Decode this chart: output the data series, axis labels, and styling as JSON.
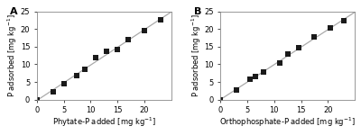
{
  "panel_A": {
    "label": "A",
    "x_data": [
      0,
      3,
      5,
      7.5,
      9,
      11,
      13,
      15,
      17,
      20,
      23
    ],
    "y_data": [
      0,
      2.3,
      4.5,
      6.8,
      8.7,
      11.8,
      13.8,
      14.2,
      16.9,
      19.5,
      22.7
    ],
    "xlabel": "Phytate-P added [mg kg$^{-1}$]",
    "ylabel": "P adsorbed [mg kg$^{-1}$]",
    "xlim": [
      0,
      25
    ],
    "ylim": [
      0,
      25
    ],
    "xticks": [
      0,
      5,
      10,
      15,
      20
    ],
    "yticks": [
      0,
      5,
      10,
      15,
      20,
      25
    ]
  },
  "panel_B": {
    "label": "B",
    "x_data": [
      0,
      3,
      5.5,
      6.5,
      8,
      11,
      12.5,
      14.5,
      17.5,
      20.5,
      23
    ],
    "y_data": [
      0,
      2.7,
      5.8,
      6.5,
      7.8,
      10.4,
      12.8,
      14.6,
      17.8,
      20.4,
      22.3
    ],
    "xlabel": "Orthophosphate-P added [mg kg$^{-1}$]",
    "ylabel": "P adsorbed [mg kg$^{-1}$]",
    "xlim": [
      0,
      25
    ],
    "ylim": [
      0,
      25
    ],
    "xticks": [
      0,
      5,
      10,
      15,
      20
    ],
    "yticks": [
      0,
      5,
      10,
      15,
      20,
      25
    ]
  },
  "marker_color": "#1a1a1a",
  "line_color": "#aaaaaa",
  "marker": "s",
  "marker_size": 4,
  "label_font_size": 6,
  "tick_font_size": 6,
  "panel_label_font_size": 8,
  "background_color": "#ffffff",
  "spine_color": "#888888"
}
